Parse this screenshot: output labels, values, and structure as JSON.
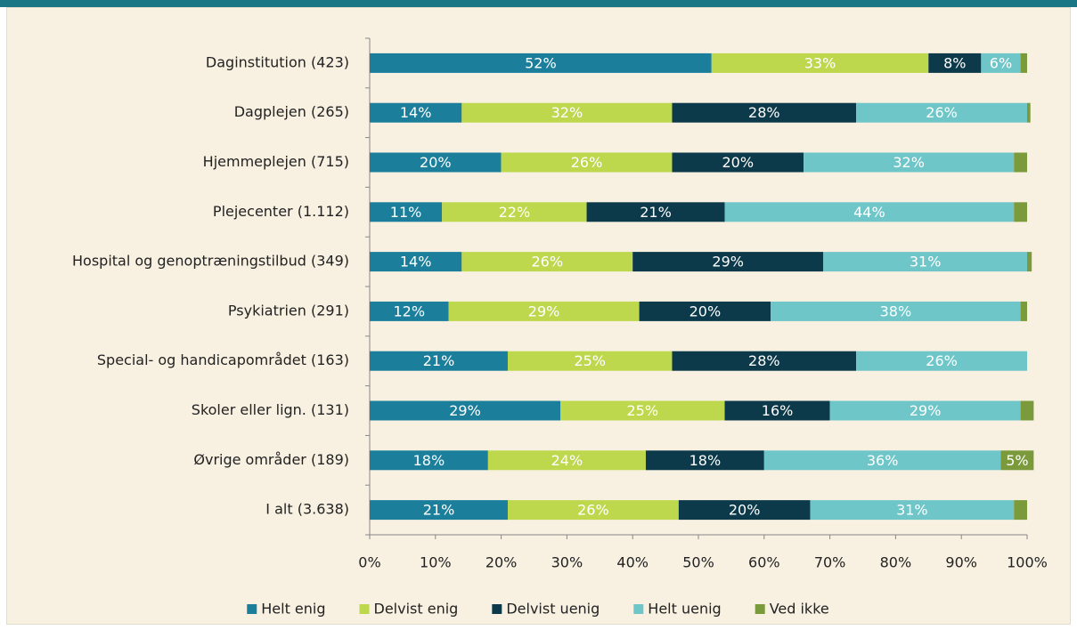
{
  "chart_data": {
    "type": "stacked-bar-horizontal",
    "categories": [
      "Daginstitution (423)",
      "Dagplejen (265)",
      "Hjemmeplejen (715)",
      "Plejecenter (1.112)",
      "Hospital og genoptræningstilbud (349)",
      "Psykiatrien (291)",
      "Special- og handicapområdet (163)",
      "Skoler eller lign. (131)",
      "Øvrige områder (189)",
      "I alt (3.638)"
    ],
    "series": [
      {
        "name": "Helt enig",
        "color": "#1b7f9c",
        "values": [
          52,
          14,
          20,
          11,
          14,
          12,
          21,
          29,
          18,
          21
        ],
        "value_labels": [
          "52%",
          "14%",
          "20%",
          "11%",
          "14%",
          "12%",
          "21%",
          "29%",
          "18%",
          "21%"
        ]
      },
      {
        "name": "Delvist enig",
        "color": "#bdd84c",
        "values": [
          33,
          32,
          26,
          22,
          26,
          29,
          25,
          25,
          24,
          26
        ],
        "value_labels": [
          "33%",
          "32%",
          "26%",
          "22%",
          "26%",
          "29%",
          "25%",
          "25%",
          "24%",
          "26%"
        ]
      },
      {
        "name": "Delvist uenig",
        "color": "#0d3a4a",
        "values": [
          8,
          28,
          20,
          21,
          29,
          20,
          28,
          16,
          18,
          20
        ],
        "value_labels": [
          "8%",
          "28%",
          "20%",
          "21%",
          "29%",
          "20%",
          "28%",
          "16%",
          "18%",
          "20%"
        ]
      },
      {
        "name": "Helt uenig",
        "color": "#6ec6c9",
        "values": [
          6,
          26,
          32,
          44,
          31,
          38,
          26,
          29,
          36,
          31
        ],
        "value_labels": [
          "6%",
          "26%",
          "32%",
          "44%",
          "31%",
          "38%",
          "26%",
          "29%",
          "36%",
          "31%"
        ]
      },
      {
        "name": "Ved ikke",
        "color": "#7b9a3c",
        "values": [
          1,
          0.5,
          2,
          2,
          0.7,
          1,
          0,
          2,
          5,
          2
        ],
        "value_labels": [
          null,
          null,
          null,
          null,
          null,
          null,
          null,
          null,
          "5%",
          null
        ]
      }
    ],
    "xlim": [
      0,
      100
    ],
    "xticks": [
      {
        "value": 0,
        "label": "0%"
      },
      {
        "value": 10,
        "label": "10%"
      },
      {
        "value": 20,
        "label": "20%"
      },
      {
        "value": 30,
        "label": "30%"
      },
      {
        "value": 40,
        "label": "40%"
      },
      {
        "value": 50,
        "label": "50%"
      },
      {
        "value": 60,
        "label": "60%"
      },
      {
        "value": 70,
        "label": "70%"
      },
      {
        "value": 80,
        "label": "80%"
      },
      {
        "value": 90,
        "label": "90%"
      },
      {
        "value": 100,
        "label": "100%"
      }
    ],
    "legend": "bottom"
  }
}
